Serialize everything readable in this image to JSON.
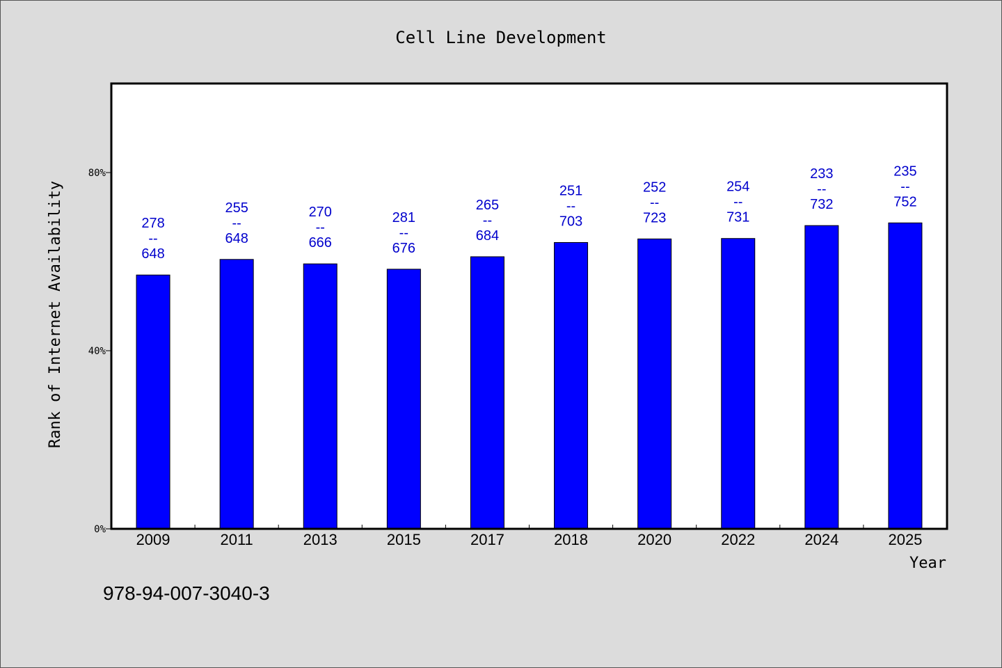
{
  "chart_data": {
    "type": "bar",
    "title": "Cell Line Development",
    "xlabel": "Year",
    "ylabel": "Rank of Internet Availability",
    "categories": [
      "2009",
      "2011",
      "2013",
      "2015",
      "2017",
      "2018",
      "2020",
      "2022",
      "2024",
      "2025"
    ],
    "values": [
      57,
      60.5,
      59.5,
      58.3,
      61.1,
      64.3,
      65.1,
      65.2,
      68.1,
      68.7
    ],
    "data_labels": [
      [
        "278",
        "--",
        "648"
      ],
      [
        "255",
        "--",
        "648"
      ],
      [
        "270",
        "--",
        "666"
      ],
      [
        "281",
        "--",
        "676"
      ],
      [
        "265",
        "--",
        "684"
      ],
      [
        "251",
        "--",
        "703"
      ],
      [
        "252",
        "--",
        "723"
      ],
      [
        "254",
        "--",
        "731"
      ],
      [
        "233",
        "--",
        "732"
      ],
      [
        "235",
        "--",
        "752"
      ]
    ],
    "ylim": [
      0,
      100
    ],
    "yticks": [
      0,
      40,
      80
    ],
    "ytick_labels": [
      "0%",
      "40%",
      "80%"
    ],
    "grid": false,
    "bar_color": "#0000ff",
    "label_color": "#0000cc"
  },
  "footer": {
    "isbn": "978-94-007-3040-3"
  }
}
